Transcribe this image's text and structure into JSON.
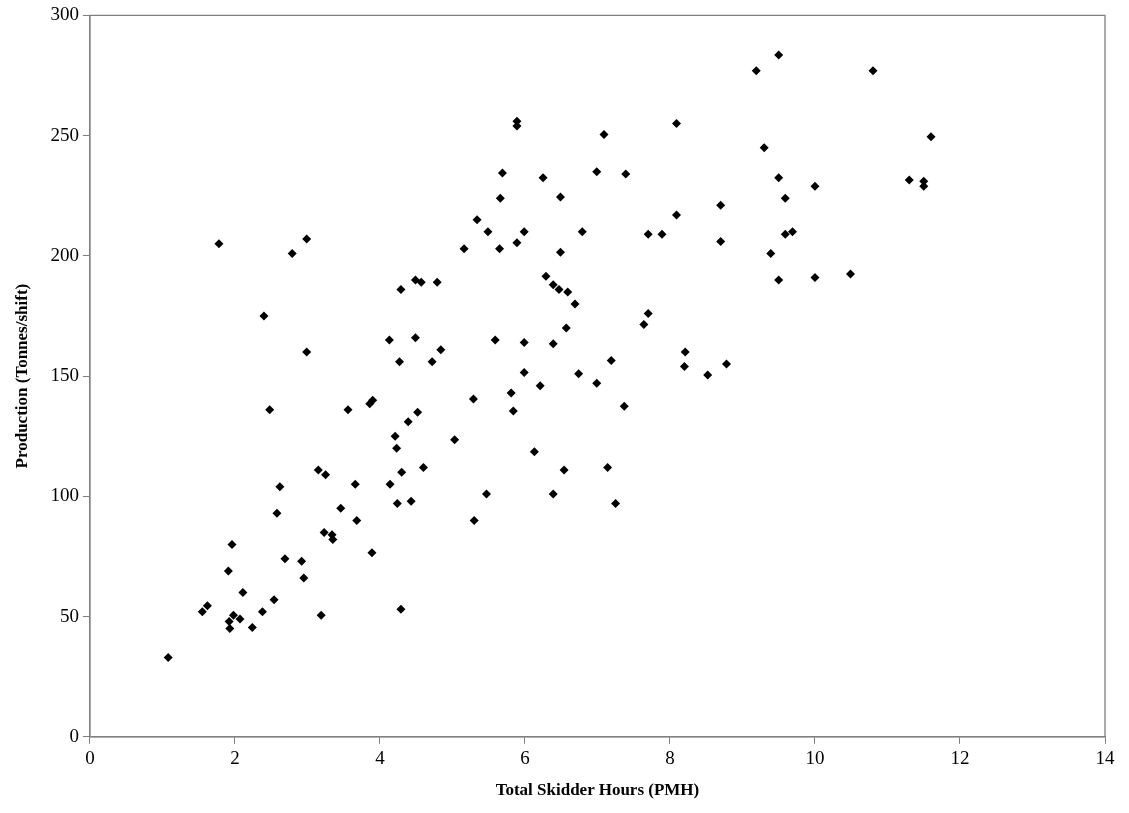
{
  "chart_data": {
    "type": "scatter",
    "xlabel": "Total Skidder Hours (PMH)",
    "ylabel": "Production (Tonnes/shift)",
    "xlim": [
      0,
      14
    ],
    "xticks": [
      0,
      2,
      4,
      6,
      8,
      10,
      12,
      14
    ],
    "ylim": [
      0,
      300
    ],
    "yticks": [
      0,
      50,
      100,
      150,
      200,
      250,
      300
    ],
    "marker": "diamond",
    "series": [
      {
        "color": "#000000",
        "x": [
          1.08,
          1.78,
          2.79,
          2.99,
          2.4,
          2.99,
          2.48,
          3.56,
          3.86,
          3.9,
          4.13,
          4.49,
          4.29,
          4.49,
          4.57,
          4.79,
          4.27,
          4.72,
          4.84,
          4.52,
          4.39,
          4.21,
          4.23,
          3.15,
          3.25,
          3.66,
          4.14,
          4.3,
          4.6,
          2.62,
          2.58,
          3.46,
          3.68,
          4.24,
          4.43,
          3.23,
          3.34,
          3.35,
          3.89,
          1.96,
          1.91,
          2.69,
          2.92,
          2.95,
          2.11,
          2.54,
          1.55,
          1.62,
          2.38,
          1.98,
          2.07,
          1.92,
          1.93,
          2.24,
          3.19,
          4.29,
          5.89,
          5.89,
          7.09,
          8.09,
          5.69,
          6.25,
          6.99,
          7.39,
          5.66,
          6.49,
          8.7,
          8.09,
          5.34,
          5.49,
          5.99,
          6.79,
          7.7,
          7.89,
          8.7,
          5.16,
          5.65,
          5.89,
          6.49,
          6.29,
          6.39,
          6.47,
          6.59,
          6.69,
          7.7,
          7.64,
          6.57,
          5.59,
          5.99,
          6.39,
          8.21,
          8.2,
          8.78,
          8.52,
          7.19,
          5.99,
          6.74,
          6.99,
          6.21,
          5.29,
          5.81,
          5.84,
          7.37,
          5.03,
          6.13,
          6.54,
          7.14,
          5.47,
          6.39,
          7.25,
          5.3,
          9.5,
          9.19,
          10.8,
          11.6,
          9.3,
          9.5,
          10.0,
          11.3,
          11.5,
          11.5,
          9.59,
          9.59,
          9.69,
          9.39,
          9.5,
          10.0,
          10.49
        ],
        "values": [
          33,
          205,
          201,
          207,
          175,
          160,
          136,
          136,
          138.5,
          140,
          165,
          166,
          186,
          190,
          189,
          189,
          156,
          156,
          161,
          135,
          131,
          125,
          120,
          111,
          109,
          105,
          105,
          110,
          112,
          104,
          93,
          95,
          90,
          97,
          98,
          85,
          84,
          82,
          76.5,
          80,
          69,
          74,
          73,
          66,
          60,
          57,
          52,
          54.5,
          52,
          50.5,
          49,
          48,
          45,
          45.5,
          50.5,
          53,
          256,
          254,
          250.5,
          255,
          234.5,
          232.5,
          235,
          234,
          224,
          224.5,
          221,
          217,
          215,
          210,
          210,
          210,
          209,
          209,
          206,
          203,
          203,
          205.5,
          201.5,
          191.5,
          188,
          186,
          185,
          180,
          176,
          171.5,
          170,
          165,
          164,
          163.5,
          160,
          154,
          155,
          150.5,
          156.5,
          151.5,
          151,
          147,
          146,
          140.5,
          143,
          135.5,
          137.5,
          123.5,
          118.5,
          111,
          112,
          101,
          101,
          97,
          90,
          283.5,
          277,
          277,
          249.5,
          245,
          232.5,
          229,
          231.5,
          231,
          229,
          224,
          209,
          210,
          201,
          190,
          191,
          192.5
        ]
      }
    ]
  }
}
